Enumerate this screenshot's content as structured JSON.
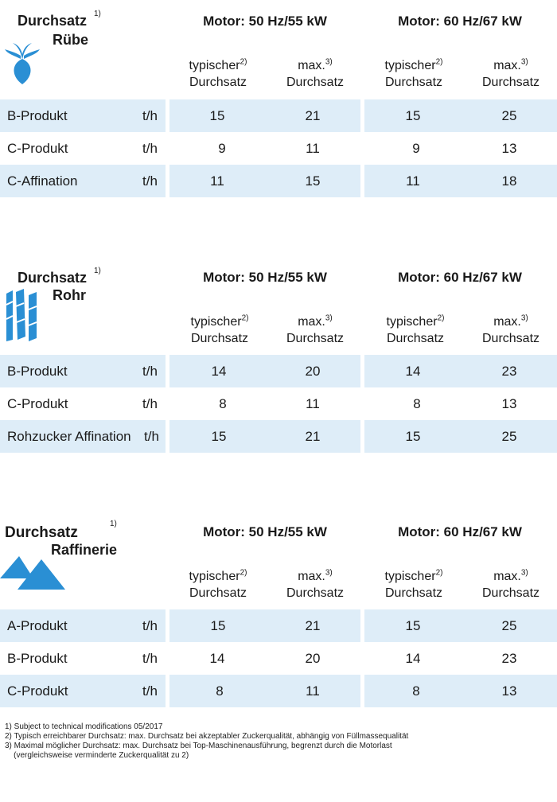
{
  "colors": {
    "band": "#deedf8",
    "icon_blue": "#2a8fd4"
  },
  "sections": [
    {
      "title_line1": "Durchsatz",
      "title_line2": "Rübe",
      "title_sup": "1)",
      "icon": "sugar-beet-icon",
      "motor_50": "Motor: 50 Hz/55 kW",
      "motor_60": "Motor: 60 Hz/67 kW",
      "typ_label": "typischer",
      "typ_sup": "2)",
      "max_label": "max.",
      "max_sup": "3)",
      "durchsatz": "Durchsatz",
      "rows": [
        {
          "label": "B-Produkt",
          "unit": "t/h",
          "v": [
            "15",
            "21",
            "15",
            "25"
          ]
        },
        {
          "label": "C-Produkt",
          "unit": "t/h",
          "v": [
            "9",
            "11",
            "9",
            "13"
          ]
        },
        {
          "label": "C-Affination",
          "unit": "t/h",
          "v": [
            "11",
            "15",
            "11",
            "18"
          ]
        }
      ]
    },
    {
      "title_line1": "Durchsatz",
      "title_line2": "Rohr",
      "title_sup": "1)",
      "icon": "sugar-cane-icon",
      "motor_50": "Motor: 50 Hz/55 kW",
      "motor_60": "Motor: 60 Hz/67 kW",
      "typ_label": "typischer",
      "typ_sup": "2)",
      "max_label": "max.",
      "max_sup": "3)",
      "durchsatz": "Durchsatz",
      "rows": [
        {
          "label": "B-Produkt",
          "unit": "t/h",
          "v": [
            "14",
            "20",
            "14",
            "23"
          ]
        },
        {
          "label": "C-Produkt",
          "unit": "t/h",
          "v": [
            "8",
            "11",
            "8",
            "13"
          ]
        },
        {
          "label": "Rohzucker Affination",
          "unit": "t/h",
          "v": [
            "15",
            "21",
            "15",
            "25"
          ]
        }
      ]
    },
    {
      "title_line1": "Durchsatz",
      "title_line2": "Raffinerie",
      "title_sup": "1)",
      "icon": "refinery-triangles-icon",
      "motor_50": "Motor: 50 Hz/55 kW",
      "motor_60": "Motor: 60 Hz/67 kW",
      "typ_label": "typischer",
      "typ_sup": "2)",
      "max_label": "max.",
      "max_sup": "3)",
      "durchsatz": "Durchsatz",
      "rows": [
        {
          "label": "A-Produkt",
          "unit": "t/h",
          "v": [
            "15",
            "21",
            "15",
            "25"
          ]
        },
        {
          "label": "B-Produkt",
          "unit": "t/h",
          "v": [
            "14",
            "20",
            "14",
            "23"
          ]
        },
        {
          "label": "C-Produkt",
          "unit": "t/h",
          "v": [
            "8",
            "11",
            "8",
            "13"
          ]
        }
      ]
    }
  ],
  "footnotes": [
    "1) Subject to technical modifications 05/2017",
    "2) Typisch erreichbarer Durchsatz: max. Durchsatz bei akzeptabler Zuckerqualität, abhängig von Füllmassequalität",
    "3) Maximal möglicher Durchsatz: max. Durchsatz bei Top-Maschinenausführung, begrenzt durch die Motorlast",
    "    (vergleichsweise verminderte Zuckerqualität zu 2)"
  ]
}
